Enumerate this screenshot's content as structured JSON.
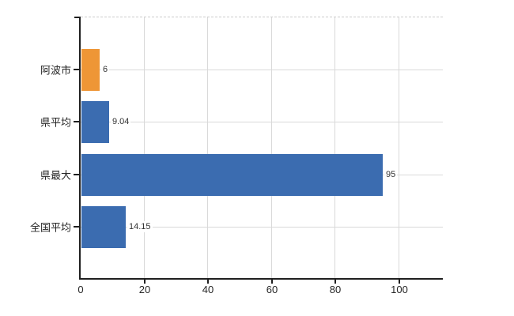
{
  "chart_data": {
    "type": "bar",
    "orientation": "horizontal",
    "title": "",
    "xlabel": "",
    "ylabel": "",
    "categories": [
      "阿波市",
      "県平均",
      "県最大",
      "全国平均"
    ],
    "values": [
      6,
      9.04,
      95,
      14.15
    ],
    "value_labels": [
      "6",
      "9.04",
      "95",
      "14.15"
    ],
    "xlim": [
      0,
      113.8
    ],
    "xticks": [
      0,
      20,
      40,
      60,
      80,
      100
    ],
    "grid": true,
    "legend": false,
    "bar_colors": [
      "#EE9636",
      "#3B6CB0",
      "#3B6CB0",
      "#3B6CB0"
    ]
  },
  "chart": {
    "bars": [
      {
        "label": "阿波市",
        "value": 6,
        "display_value": "6",
        "color": "#EE9636"
      },
      {
        "label": "県平均",
        "value": 9.04,
        "display_value": "9.04",
        "color": "#3B6CB0"
      },
      {
        "label": "県最大",
        "value": 95,
        "display_value": "95",
        "color": "#3B6CB0"
      },
      {
        "label": "全国平均",
        "value": 14.15,
        "display_value": "14.15",
        "color": "#3B6CB0"
      }
    ],
    "x_axis": {
      "tick_labels": [
        "0",
        "20",
        "40",
        "60",
        "80",
        "100"
      ],
      "tick_values": [
        0,
        20,
        40,
        60,
        80,
        100
      ]
    },
    "colors": {
      "bar_blue": "#3B6CB0",
      "bar_orange": "#EE9636",
      "gridline": "#D9D9D9",
      "axis": "#1F1F1F",
      "text": "#262626"
    }
  }
}
